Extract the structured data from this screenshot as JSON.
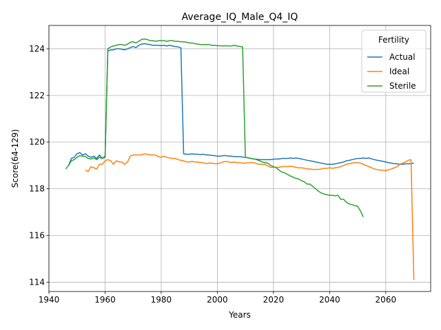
{
  "chart_data": {
    "type": "line",
    "title": "Average_IQ_Male_Q4_IQ",
    "xlabel": "Years",
    "ylabel": "Score(64-129)",
    "xlim": [
      1940,
      2076
    ],
    "ylim": [
      113.6,
      125.0
    ],
    "xticks": [
      1940,
      1960,
      1980,
      2000,
      2020,
      2040,
      2060
    ],
    "yticks": [
      114,
      116,
      118,
      120,
      122,
      124
    ],
    "grid": true,
    "legend": {
      "title": "Fertility",
      "placement": "top-right"
    },
    "series": [
      {
        "name": "Actual",
        "color": "#1f77b4",
        "x": [
          1947,
          1948,
          1949,
          1950,
          1951,
          1952,
          1953,
          1954,
          1955,
          1956,
          1957,
          1958,
          1959,
          1960,
          1961,
          1962,
          1963,
          1964,
          1965,
          1966,
          1967,
          1968,
          1969,
          1970,
          1971,
          1972,
          1973,
          1974,
          1975,
          1976,
          1977,
          1978,
          1979,
          1980,
          1981,
          1982,
          1983,
          1984,
          1985,
          1986,
          1987,
          1988,
          1989,
          1990,
          1991,
          1992,
          1993,
          1994,
          1995,
          1996,
          1997,
          1998,
          1999,
          2000,
          2001,
          2002,
          2003,
          2004,
          2005,
          2006,
          2007,
          2008,
          2009,
          2010,
          2011,
          2012,
          2013,
          2014,
          2015,
          2016,
          2017,
          2018,
          2019,
          2020,
          2021,
          2022,
          2023,
          2024,
          2025,
          2026,
          2027,
          2028,
          2029,
          2030,
          2031,
          2032,
          2033,
          2034,
          2035,
          2036,
          2037,
          2038,
          2039,
          2040,
          2041,
          2042,
          2043,
          2044,
          2045,
          2046,
          2047,
          2048,
          2049,
          2050,
          2051,
          2052,
          2053,
          2054,
          2055,
          2056,
          2057,
          2058,
          2059,
          2060,
          2061,
          2062,
          2063,
          2064,
          2065,
          2066,
          2067,
          2068,
          2069,
          2070
        ],
        "y": [
          119.0,
          119.3,
          119.35,
          119.5,
          119.55,
          119.45,
          119.5,
          119.4,
          119.35,
          119.4,
          119.3,
          119.45,
          119.3,
          119.4,
          123.9,
          123.95,
          123.95,
          124.0,
          124.0,
          123.98,
          123.95,
          124.0,
          124.05,
          124.1,
          124.05,
          124.15,
          124.2,
          124.22,
          124.2,
          124.18,
          124.15,
          124.15,
          124.15,
          124.13,
          124.15,
          124.12,
          124.15,
          124.12,
          124.1,
          124.08,
          124.05,
          119.5,
          119.48,
          119.48,
          119.5,
          119.48,
          119.48,
          119.47,
          119.48,
          119.45,
          119.45,
          119.43,
          119.42,
          119.4,
          119.4,
          119.42,
          119.42,
          119.4,
          119.4,
          119.38,
          119.38,
          119.38,
          119.36,
          119.35,
          119.33,
          119.3,
          119.28,
          119.27,
          119.25,
          119.25,
          119.25,
          119.25,
          119.25,
          119.27,
          119.28,
          119.28,
          119.3,
          119.3,
          119.3,
          119.32,
          119.3,
          119.32,
          119.3,
          119.28,
          119.25,
          119.22,
          119.2,
          119.18,
          119.15,
          119.13,
          119.1,
          119.08,
          119.05,
          119.05,
          119.05,
          119.07,
          119.1,
          119.12,
          119.15,
          119.2,
          119.22,
          119.25,
          119.28,
          119.3,
          119.3,
          119.32,
          119.3,
          119.32,
          119.28,
          119.25,
          119.22,
          119.2,
          119.18,
          119.15,
          119.12,
          119.1,
          119.08,
          119.07,
          119.05,
          119.05,
          119.07,
          119.07,
          119.08,
          119.1
        ]
      },
      {
        "name": "Ideal",
        "color": "#ff7f0e",
        "x": [
          1953,
          1954,
          1955,
          1956,
          1957,
          1958,
          1959,
          1960,
          1961,
          1962,
          1963,
          1964,
          1965,
          1966,
          1967,
          1968,
          1969,
          1970,
          1971,
          1972,
          1973,
          1974,
          1975,
          1976,
          1977,
          1978,
          1979,
          1980,
          1981,
          1982,
          1983,
          1984,
          1985,
          1986,
          1987,
          1988,
          1989,
          1990,
          1991,
          1992,
          1993,
          1994,
          1995,
          1996,
          1997,
          1998,
          1999,
          2000,
          2001,
          2002,
          2003,
          2004,
          2005,
          2006,
          2007,
          2008,
          2009,
          2010,
          2011,
          2012,
          2013,
          2014,
          2015,
          2016,
          2017,
          2018,
          2019,
          2020,
          2021,
          2022,
          2023,
          2024,
          2025,
          2026,
          2027,
          2028,
          2029,
          2030,
          2031,
          2032,
          2033,
          2034,
          2035,
          2036,
          2037,
          2038,
          2039,
          2040,
          2041,
          2042,
          2043,
          2044,
          2045,
          2046,
          2047,
          2048,
          2049,
          2050,
          2051,
          2052,
          2053,
          2054,
          2055,
          2056,
          2057,
          2058,
          2059,
          2060,
          2061,
          2062,
          2063,
          2064,
          2065,
          2066,
          2067,
          2068,
          2069,
          2070
        ],
        "y": [
          118.8,
          118.75,
          118.95,
          118.9,
          118.85,
          119.05,
          119.05,
          119.2,
          119.25,
          119.2,
          119.05,
          119.2,
          119.15,
          119.15,
          119.05,
          119.15,
          119.4,
          119.45,
          119.45,
          119.45,
          119.45,
          119.5,
          119.48,
          119.45,
          119.45,
          119.45,
          119.38,
          119.35,
          119.4,
          119.35,
          119.32,
          119.3,
          119.3,
          119.25,
          119.22,
          119.2,
          119.15,
          119.15,
          119.18,
          119.15,
          119.15,
          119.12,
          119.12,
          119.08,
          119.1,
          119.1,
          119.08,
          119.08,
          119.1,
          119.15,
          119.18,
          119.15,
          119.12,
          119.15,
          119.12,
          119.12,
          119.1,
          119.1,
          119.12,
          119.12,
          119.12,
          119.08,
          119.05,
          119.05,
          119.05,
          118.98,
          118.92,
          118.92,
          118.92,
          118.92,
          118.95,
          118.95,
          118.95,
          118.97,
          118.95,
          118.92,
          118.9,
          118.9,
          118.88,
          118.85,
          118.85,
          118.83,
          118.83,
          118.83,
          118.85,
          118.88,
          118.88,
          118.9,
          118.88,
          118.9,
          118.92,
          118.95,
          119.0,
          119.05,
          119.08,
          119.1,
          119.12,
          119.12,
          119.1,
          119.05,
          119.0,
          118.95,
          118.9,
          118.85,
          118.82,
          118.8,
          118.8,
          118.78,
          118.82,
          118.85,
          118.9,
          118.95,
          119.05,
          119.1,
          119.15,
          119.22,
          119.25,
          114.1
        ]
      },
      {
        "name": "Sterile",
        "color": "#2ca02c",
        "x": [
          1946,
          1947,
          1948,
          1949,
          1950,
          1951,
          1952,
          1953,
          1954,
          1955,
          1956,
          1957,
          1958,
          1959,
          1960,
          1961,
          1962,
          1963,
          1964,
          1965,
          1966,
          1967,
          1968,
          1969,
          1970,
          1971,
          1972,
          1973,
          1974,
          1975,
          1976,
          1977,
          1978,
          1979,
          1980,
          1981,
          1982,
          1983,
          1984,
          1985,
          1986,
          1987,
          1988,
          1989,
          1990,
          1991,
          1992,
          1993,
          1994,
          1995,
          1996,
          1997,
          1998,
          1999,
          2000,
          2001,
          2002,
          2003,
          2004,
          2005,
          2006,
          2007,
          2008,
          2009,
          2010,
          2011,
          2012,
          2013,
          2014,
          2015,
          2016,
          2017,
          2018,
          2019,
          2020,
          2021,
          2022,
          2023,
          2024,
          2025,
          2026,
          2027,
          2028,
          2029,
          2030,
          2031,
          2032,
          2033,
          2034,
          2035,
          2036,
          2037,
          2038,
          2039,
          2040,
          2041,
          2042,
          2043,
          2044,
          2045,
          2046,
          2047,
          2048,
          2049,
          2050,
          2051,
          2052
        ],
        "y": [
          118.85,
          119.0,
          119.2,
          119.25,
          119.35,
          119.42,
          119.4,
          119.38,
          119.3,
          119.28,
          119.32,
          119.25,
          119.35,
          119.3,
          119.35,
          124.0,
          124.08,
          124.12,
          124.15,
          124.18,
          124.18,
          124.15,
          124.2,
          124.28,
          124.3,
          124.25,
          124.32,
          124.4,
          124.42,
          124.4,
          124.35,
          124.35,
          124.32,
          124.35,
          124.35,
          124.35,
          124.32,
          124.35,
          124.35,
          124.32,
          124.32,
          124.3,
          124.3,
          124.28,
          124.25,
          124.25,
          124.22,
          124.2,
          124.18,
          124.18,
          124.18,
          124.18,
          124.15,
          124.15,
          124.13,
          124.13,
          124.12,
          124.13,
          124.12,
          124.12,
          124.15,
          124.12,
          124.1,
          124.08,
          119.35,
          119.32,
          119.3,
          119.28,
          119.25,
          119.2,
          119.15,
          119.12,
          119.1,
          119.0,
          118.95,
          118.9,
          118.8,
          118.72,
          118.68,
          118.62,
          118.55,
          118.5,
          118.45,
          118.42,
          118.35,
          118.3,
          118.2,
          118.2,
          118.1,
          118.0,
          117.9,
          117.82,
          117.78,
          117.75,
          117.72,
          117.72,
          117.7,
          117.72,
          117.55,
          117.55,
          117.42,
          117.35,
          117.32,
          117.28,
          117.25,
          117.05,
          116.8
        ]
      }
    ]
  }
}
